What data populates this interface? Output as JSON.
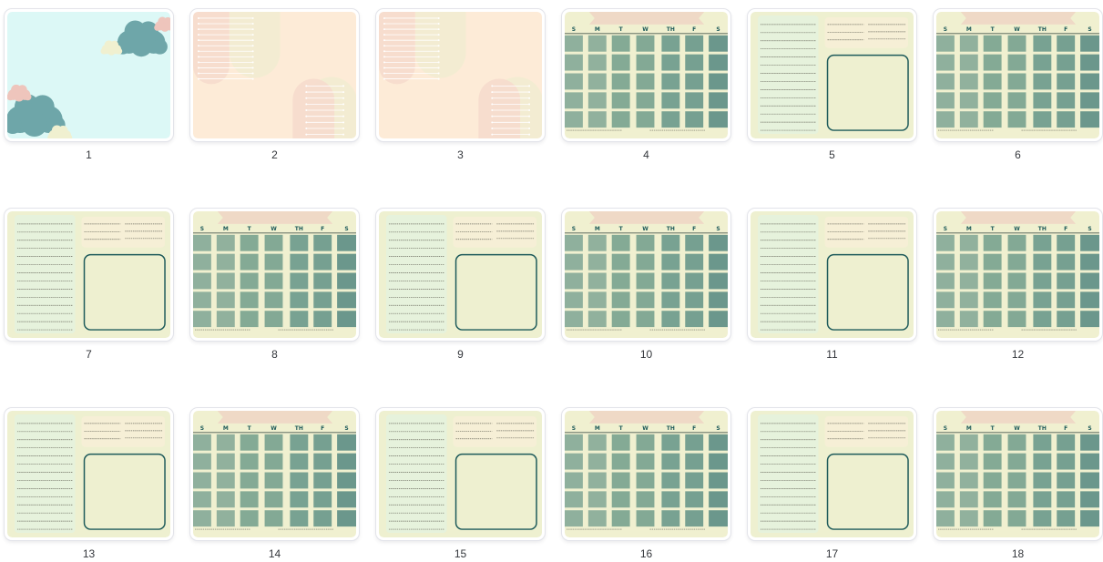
{
  "slides": [
    {
      "number": "1",
      "type": "clouds"
    },
    {
      "number": "2",
      "type": "peach"
    },
    {
      "number": "3",
      "type": "peach"
    },
    {
      "number": "4",
      "type": "calendar"
    },
    {
      "number": "5",
      "type": "notes"
    },
    {
      "number": "6",
      "type": "calendar"
    },
    {
      "number": "7",
      "type": "notes"
    },
    {
      "number": "8",
      "type": "calendar"
    },
    {
      "number": "9",
      "type": "notes"
    },
    {
      "number": "10",
      "type": "calendar"
    },
    {
      "number": "11",
      "type": "notes"
    },
    {
      "number": "12",
      "type": "calendar"
    },
    {
      "number": "13",
      "type": "notes"
    },
    {
      "number": "14",
      "type": "calendar"
    },
    {
      "number": "15",
      "type": "notes"
    },
    {
      "number": "16",
      "type": "calendar"
    },
    {
      "number": "17",
      "type": "notes"
    },
    {
      "number": "18",
      "type": "calendar"
    }
  ],
  "calendar": {
    "weekdays": [
      "S",
      "M",
      "T",
      "W",
      "TH",
      "F",
      "S"
    ]
  },
  "colors": {
    "cloud_bg": "#dcf8f6",
    "cloud_teal": "#6ea6a9",
    "cloud_pink": "#eec5bc",
    "cloud_cream": "#f0f0d0",
    "peach_bg": "#fdebd7",
    "peach_arch": "#f6dccd",
    "cream_arch": "#f3ecd2",
    "calendar_bg": "#f0f0d0",
    "banner": "#efd9c6",
    "weekday_text": "#1d5a5a",
    "column_shades": [
      "#8fb09d",
      "#91b19d",
      "#84aa95",
      "#83a995",
      "#78a292",
      "#76a091",
      "#6b978c"
    ],
    "notes_bg": "#eef0d0",
    "notes_panel": "#e6f2dc",
    "notes_top_panel": "#f6efd6",
    "box_border": "#1d5a5a"
  }
}
